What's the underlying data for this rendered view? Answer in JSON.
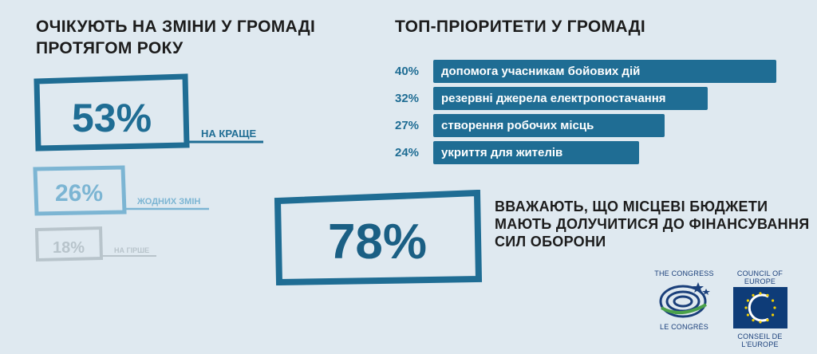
{
  "left": {
    "title_line1": "ОЧІКУЮТЬ НА ЗМІНИ У ГРОМАДІ",
    "title_line2": "ПРОТЯГОМ РОКУ",
    "items": [
      {
        "value": "53%",
        "label": "НА КРАЩЕ",
        "color": "#1f6d94"
      },
      {
        "value": "26%",
        "label": "ЖОДНИХ ЗМІН",
        "color": "#7cb5d3"
      },
      {
        "value": "18%",
        "label": "НА ГІРШЕ",
        "color": "#b8c4cb"
      }
    ]
  },
  "chart_data": {
    "type": "bar",
    "title": "ТОП-ПРІОРИТЕТИ У ГРОМАДІ",
    "orientation": "horizontal",
    "categories": [
      "допомога учасникам бойових дій",
      "резервні джерела електропостачання",
      "створення робочих місць",
      "укриття для жителів"
    ],
    "values": [
      40,
      32,
      27,
      24
    ],
    "value_labels": [
      "40%",
      "32%",
      "27%",
      "24%"
    ],
    "xlim": [
      0,
      40
    ],
    "color": "#1f6d94"
  },
  "bottom": {
    "value": "78%",
    "text_line1": "ВВАЖАЮТЬ, ЩО МІСЦЕВІ БЮДЖЕТИ",
    "text_line2": "МАЮТЬ ДОЛУЧИТИСЯ ДО ФІНАНСУВАННЯ",
    "text_line3": "СИЛ ОБОРОНИ"
  },
  "logos": {
    "congress_top": "THE CONGRESS",
    "congress_bottom": "LE CONGRÈS",
    "coe_top": "COUNCIL OF EUROPE",
    "coe_bottom": "CONSEIL DE L'EUROPE",
    "coe_color": "#0e3c78"
  }
}
